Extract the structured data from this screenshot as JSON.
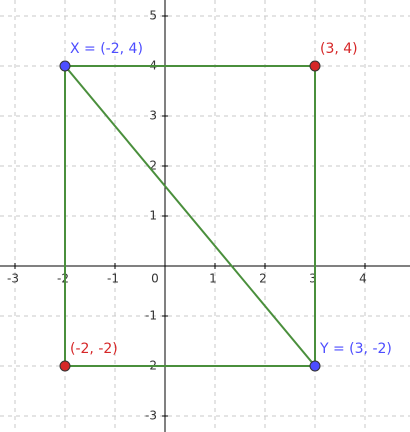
{
  "chart_data": {
    "type": "scatter",
    "x": [
      -2,
      3,
      -2,
      3
    ],
    "values": [
      4,
      4,
      -2,
      -2
    ],
    "point_labels": [
      "X = (-2, 4)",
      "(3, 4)",
      "(-2, -2)",
      "Y = (3, -2)"
    ],
    "point_colors": [
      "#4d4dff",
      "#d62728",
      "#d62728",
      "#4d4dff"
    ],
    "segments": [
      [
        0,
        1
      ],
      [
        1,
        3
      ],
      [
        3,
        2
      ],
      [
        2,
        0
      ],
      [
        0,
        3
      ]
    ],
    "line_color": "#4a8f3c",
    "xlim": [
      -3.3,
      4.9
    ],
    "ylim": [
      -3.32,
      5.32
    ],
    "xticks": [
      -3,
      -2,
      -1,
      0,
      1,
      2,
      3,
      4
    ],
    "yticks": [
      -3,
      -2,
      -1,
      1,
      2,
      3,
      4,
      5
    ],
    "grid": true
  }
}
